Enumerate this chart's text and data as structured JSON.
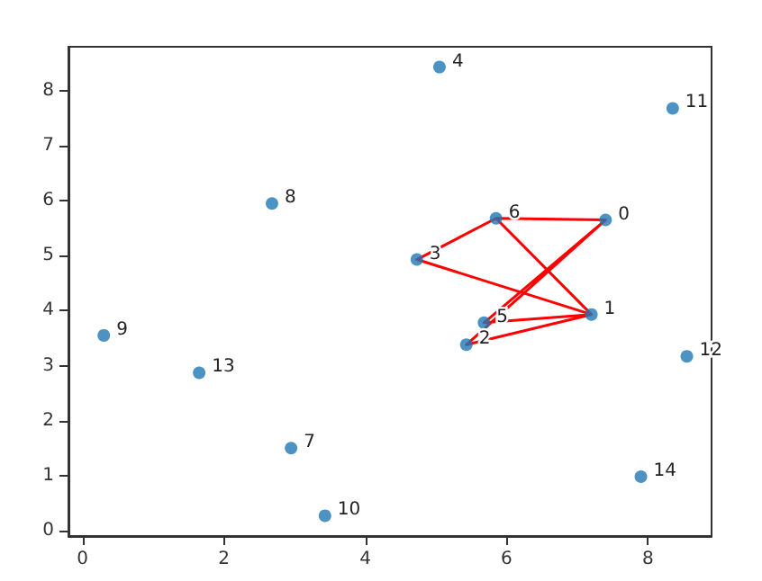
{
  "chart_data": {
    "type": "scatter",
    "x": [
      7.4,
      7.2,
      5.43,
      4.73,
      5.05,
      5.68,
      5.85,
      2.95,
      2.68,
      0.3,
      3.43,
      8.35,
      8.55,
      1.65,
      7.9
    ],
    "series": [
      {
        "color": "#1f77b4",
        "marker": "circle",
        "values": [
          5.65,
          3.93,
          3.38,
          4.93,
          8.43,
          3.78,
          5.68,
          1.5,
          5.95,
          3.55,
          0.27,
          7.68,
          3.17,
          2.87,
          0.98
        ]
      },
      {
        "type": "line",
        "color": "#ff0000",
        "marker": "none",
        "x": [
          7.4,
          5.68,
          7.2,
          5.43,
          7.4,
          5.85,
          4.73,
          7.2,
          5.85
        ],
        "values": [
          5.65,
          3.78,
          3.93,
          3.38,
          5.65,
          5.68,
          4.93,
          3.93,
          5.68
        ]
      }
    ],
    "annotations": [
      {
        "text": "0",
        "x": 7.4,
        "y": 5.65
      },
      {
        "text": "1",
        "x": 7.2,
        "y": 3.93
      },
      {
        "text": "2",
        "x": 5.43,
        "y": 3.38
      },
      {
        "text": "3",
        "x": 4.73,
        "y": 4.93
      },
      {
        "text": "4",
        "x": 5.05,
        "y": 8.43
      },
      {
        "text": "5",
        "x": 5.68,
        "y": 3.78
      },
      {
        "text": "6",
        "x": 5.85,
        "y": 5.68
      },
      {
        "text": "7",
        "x": 2.95,
        "y": 1.5
      },
      {
        "text": "8",
        "x": 2.68,
        "y": 5.95
      },
      {
        "text": "9",
        "x": 0.3,
        "y": 3.55
      },
      {
        "text": "10",
        "x": 3.43,
        "y": 0.27
      },
      {
        "text": "11",
        "x": 8.35,
        "y": 7.68
      },
      {
        "text": "12",
        "x": 8.55,
        "y": 3.17
      },
      {
        "text": "13",
        "x": 1.65,
        "y": 2.87
      },
      {
        "text": "14",
        "x": 7.9,
        "y": 0.98
      }
    ],
    "xlim": [
      -0.2,
      8.9
    ],
    "xticks": [
      0,
      2,
      4,
      6,
      8
    ],
    "ylim": [
      -0.1,
      8.8
    ],
    "yticks": [
      0,
      1,
      2,
      3,
      4,
      5,
      6,
      7,
      8
    ],
    "grid": false,
    "line_style": "solid"
  }
}
